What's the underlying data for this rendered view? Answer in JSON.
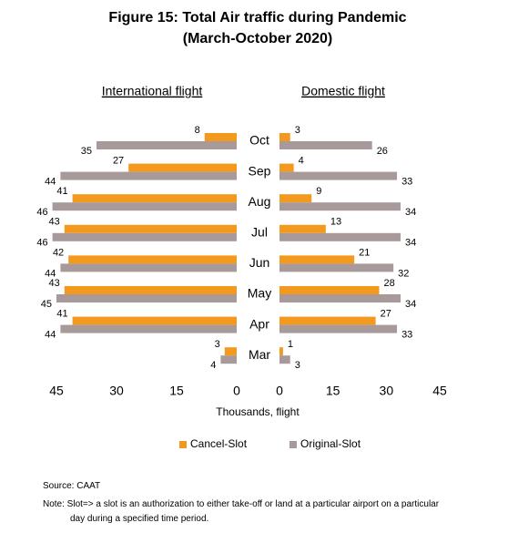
{
  "chart_data": {
    "type": "bar",
    "orientation": "horizontal",
    "title": "Figure 15: Total Air traffic during Pandemic",
    "subtitle": "(March-October 2020)",
    "categories": [
      "Oct",
      "Sep",
      "Aug",
      "Jul",
      "Jun",
      "May",
      "Apr",
      "Mar"
    ],
    "xlabel": "Thousands, flight",
    "legend_position": "bottom",
    "legend": [
      {
        "name": "Cancel-Slot",
        "color": "#f39a1e"
      },
      {
        "name": "Original-Slot",
        "color": "#a89a9a"
      }
    ],
    "panels": [
      {
        "title": "International flight",
        "direction": "left",
        "xlim": [
          0,
          45
        ],
        "xticks": [
          0,
          15,
          30,
          45
        ],
        "series": [
          {
            "values": [
              8,
              27,
              41,
              43,
              42,
              43,
              41,
              3
            ]
          },
          {
            "values": [
              35,
              44,
              46,
              46,
              44,
              45,
              44,
              4
            ]
          }
        ]
      },
      {
        "title": "Domestic flight",
        "direction": "right",
        "xlim": [
          0,
          45
        ],
        "xticks": [
          0,
          15,
          30,
          45
        ],
        "series": [
          {
            "values": [
              3,
              4,
              9,
              13,
              21,
              28,
              27,
              1
            ]
          },
          {
            "values": [
              26,
              33,
              34,
              34,
              32,
              34,
              33,
              3
            ]
          }
        ]
      }
    ]
  },
  "source": "Source: CAAT",
  "note": "Note: Slot=> a slot is an authorization to either take-off or land at a particular airport on a particular day during a specified time period."
}
